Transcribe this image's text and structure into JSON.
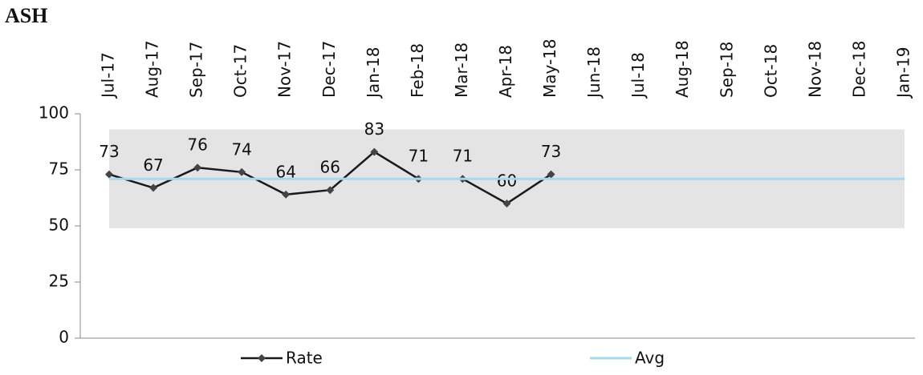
{
  "chart_data": {
    "type": "line",
    "title": "ASH",
    "categories": [
      "Jul-17",
      "Aug-17",
      "Sep-17",
      "Oct-17",
      "Nov-17",
      "Dec-17",
      "Jan-18",
      "Feb-18",
      "Mar-18",
      "Apr-18",
      "May-18",
      "Jun-18",
      "Jul-18",
      "Aug-18",
      "Sep-18",
      "Oct-18",
      "Nov-18",
      "Dec-18",
      "Jan-19"
    ],
    "series": [
      {
        "name": "Rate",
        "color": "#1a1a1a",
        "values": [
          73,
          67,
          76,
          74,
          64,
          66,
          83,
          71,
          71,
          60,
          73,
          null,
          null,
          null,
          null,
          null,
          null,
          null,
          null
        ],
        "data_labels": true
      },
      {
        "name": "Avg",
        "color": "#a8d8ea",
        "values": [
          71,
          71,
          71,
          71,
          71,
          71,
          71,
          71,
          71,
          71,
          71,
          71,
          71,
          71,
          71,
          71,
          71,
          71,
          71
        ],
        "data_labels": false
      }
    ],
    "band": [
      49,
      93
    ],
    "band_color": "#e4e4e4",
    "ylim": [
      0,
      100
    ],
    "yticks": [
      0,
      25,
      50,
      75,
      100
    ],
    "grid": false,
    "legend": "bottom"
  }
}
